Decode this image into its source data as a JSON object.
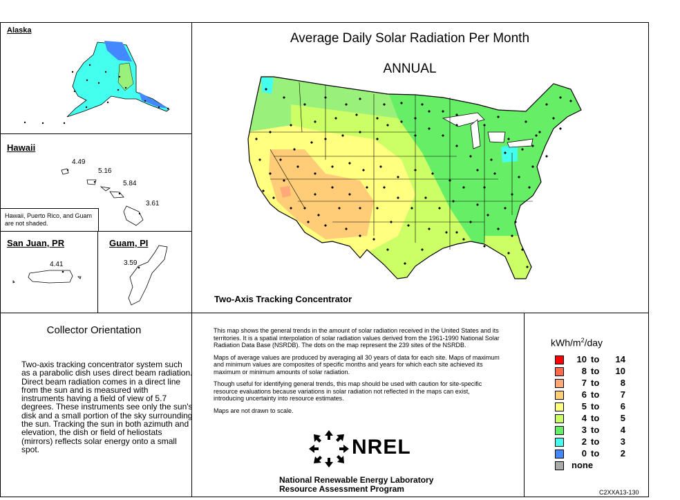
{
  "title": "Average Daily Solar Radiation Per Month",
  "period": "ANNUAL",
  "collector_type": "Two-Axis Tracking Concentrator",
  "insets": {
    "alaska": {
      "label": "Alaska"
    },
    "hawaii": {
      "label": "Hawaii",
      "values": [
        "4.49",
        "5.16",
        "5.84",
        "3.61"
      ],
      "note": "Hawaii, Puerto Rico, and Guam are not shaded."
    },
    "san_juan": {
      "label": "San Juan, PR",
      "value": "4.41"
    },
    "guam": {
      "label": "Guam, PI",
      "value": "3.59"
    }
  },
  "orientation": {
    "heading": "Collector Orientation",
    "text": "Two-axis tracking concentrator system such as a parabolic dish uses direct beam radiation.  Direct beam radiation comes in a direct line from the sun and is measured with instruments having a field of view of 5.7 degrees.  These instruments see only the sun's disk and a small portion of the sky surrounding the sun.  Tracking the sun in both azimuth and elevation, the dish or field of heliostats (mirrors) reflects solar energy onto a small spot."
  },
  "notes": [
    "This map shows the general trends in the amount of solar radiation received in the United States and its territories.  It is a spatial interpolation of solar radiation values derived from the 1961-1990 National Solar Radiation Data Base (NSRDB).  The dots on the map represent the 239 sites of the NSRDB.",
    "Maps of average values are produced by averaging all 30 years of data for each site. Maps of maximum and minimum values are composites of specific months and years for which each site achieved its maximum or minimum amounts of solar radiation.",
    "Though useful for identifying general trends, this map should be used with caution for site-specific resource evaluations because variations in solar radiation not reflected in the maps can exist, introducing uncertainty into resource estimates.",
    "Maps are not drawn to scale."
  ],
  "logo": {
    "text": "NREL",
    "org_line1": "National Renewable Energy Laboratory",
    "org_line2": "Resource Assessment Program"
  },
  "legend": {
    "unit_prefix": "kWh/m",
    "unit_sup": "2",
    "unit_suffix": "/day",
    "items": [
      {
        "lo": "10",
        "to": "to",
        "hi": "14",
        "color": "#ff0000"
      },
      {
        "lo": "8",
        "to": "to",
        "hi": "10",
        "color": "#ff6a4a"
      },
      {
        "lo": "7",
        "to": "to",
        "hi": "8",
        "color": "#ffa878"
      },
      {
        "lo": "6",
        "to": "to",
        "hi": "7",
        "color": "#ffcc77"
      },
      {
        "lo": "5",
        "to": "to",
        "hi": "6",
        "color": "#ffff80"
      },
      {
        "lo": "4",
        "to": "to",
        "hi": "5",
        "color": "#ccff66"
      },
      {
        "lo": "3",
        "to": "to",
        "hi": "4",
        "color": "#66ee66"
      },
      {
        "lo": "2",
        "to": "to",
        "hi": "3",
        "color": "#44ffee"
      },
      {
        "lo": "0",
        "to": "to",
        "hi": "2",
        "color": "#4488ff"
      },
      {
        "lo": "none",
        "to": "",
        "hi": "",
        "color": "#aaaaaa"
      }
    ]
  },
  "code": "C2XXA13-130"
}
